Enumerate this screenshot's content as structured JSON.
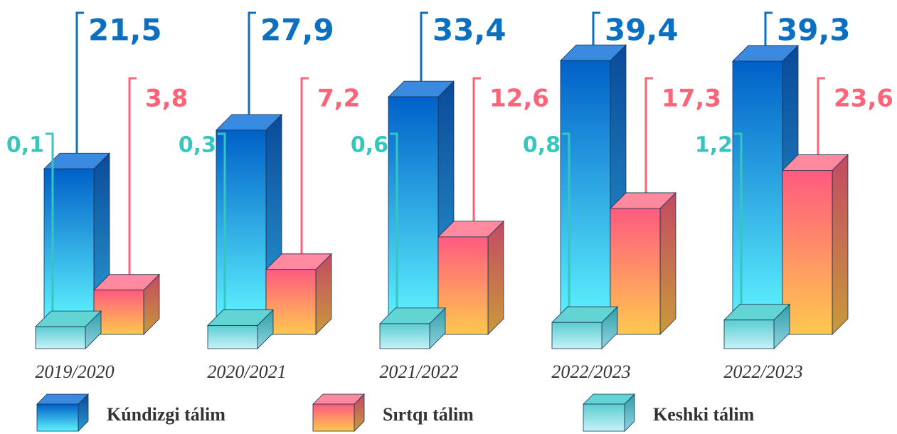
{
  "chart_data": {
    "type": "bar3d",
    "categories": [
      "2019/2020",
      "2020/2021",
      "2021/2022",
      "2022/2023",
      "2022/2023"
    ],
    "series": [
      {
        "name": "Kúndizgi tálim",
        "color": "#0b6fc2",
        "values": [
          21.5,
          27.9,
          33.4,
          39.4,
          39.3
        ],
        "value_labels": [
          "21,5",
          "27,9",
          "33,4",
          "39,4",
          "39,3"
        ]
      },
      {
        "name": "Sırtqı tálim",
        "color": "#ff6378",
        "values": [
          3.8,
          7.2,
          12.6,
          17.3,
          23.6
        ],
        "value_labels": [
          "3,8",
          "7,2",
          "12,6",
          "17,3",
          "23,6"
        ]
      },
      {
        "name": "Keshki tálim",
        "color": "#36c6bd",
        "values": [
          0.1,
          0.3,
          0.6,
          0.8,
          1.2
        ],
        "value_labels": [
          "0,1",
          "0,3",
          "0,6",
          "0,8",
          "1,2"
        ]
      }
    ],
    "legend": "bottom"
  }
}
